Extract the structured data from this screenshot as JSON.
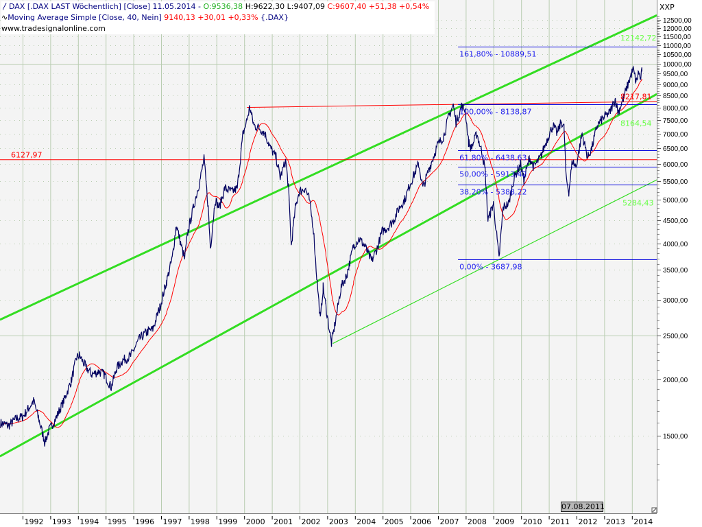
{
  "legend": {
    "line1": {
      "symbol": "DAX [.DAX LAST Wöchentlich] [Close] 11.05.2014 -",
      "open": "O:9536,38",
      "hl": "H:9622,30 L:9407,09",
      "close": "C:9607,40 +51,38 +0,54%"
    },
    "line2": {
      "name": "Moving Average Simple [Close, 40, Nein]",
      "value": "9140,13 +30,01 +0,33%",
      "suffix": "{.DAX}"
    },
    "url": "www.tradesignalonline.com"
  },
  "axis_unit": "XXP",
  "cursor_label": "07.08.2011",
  "colors": {
    "price": "#000060",
    "ma": "#ff0000",
    "trend": "#33dd22",
    "fib": "#0000dd",
    "grid": "#b8ccb0",
    "plot_bg": "#f4f4f4"
  },
  "chart_data": {
    "type": "line",
    "yscale": "log",
    "ylim": [
      1150,
      13200
    ],
    "xlim": [
      1991.18,
      2014.9
    ],
    "grid": true,
    "x_ticks": [
      "1992",
      "1993",
      "1994",
      "1995",
      "1996",
      "1997",
      "1998",
      "1999",
      "2000",
      "2001",
      "2002",
      "2003",
      "2004",
      "2005",
      "2006",
      "2007",
      "2008",
      "2009",
      "2010",
      "2011",
      "2012",
      "2013",
      "2014"
    ],
    "y_ticks": [
      "12500,00",
      "12000,00",
      "11500,00",
      "11000,00",
      "10500,00",
      "10000,00",
      "9500,00",
      "9000,00",
      "8500,00",
      "8000,00",
      "7500,00",
      "7000,00",
      "6500,00",
      "6000,00",
      "5500,00",
      "5000,00",
      "4500,00",
      "4000,00",
      "3500,00",
      "3000,00",
      "2500,00",
      "2000,00",
      "1500,00"
    ],
    "y_tick_values": [
      12500,
      12000,
      11500,
      11000,
      10500,
      10000,
      9500,
      9000,
      8500,
      8000,
      7500,
      7000,
      6500,
      6000,
      5500,
      5000,
      4500,
      4000,
      3500,
      3000,
      2500,
      2000,
      1500
    ],
    "series": [
      {
        "name": "DAX",
        "points": [
          [
            1991.2,
            1600
          ],
          [
            1991.5,
            1580
          ],
          [
            1991.8,
            1640
          ],
          [
            1992.0,
            1650
          ],
          [
            1992.2,
            1720
          ],
          [
            1992.4,
            1790
          ],
          [
            1992.6,
            1620
          ],
          [
            1992.8,
            1450
          ],
          [
            1992.95,
            1540
          ],
          [
            1993.2,
            1640
          ],
          [
            1993.5,
            1800
          ],
          [
            1993.75,
            1980
          ],
          [
            1993.95,
            2230
          ],
          [
            1994.05,
            2260
          ],
          [
            1994.3,
            2120
          ],
          [
            1994.5,
            2050
          ],
          [
            1994.75,
            2080
          ],
          [
            1994.95,
            2050
          ],
          [
            1995.2,
            1920
          ],
          [
            1995.4,
            2120
          ],
          [
            1995.6,
            2200
          ],
          [
            1995.9,
            2250
          ],
          [
            1996.2,
            2450
          ],
          [
            1996.5,
            2550
          ],
          [
            1996.7,
            2580
          ],
          [
            1996.95,
            2880
          ],
          [
            1997.2,
            3300
          ],
          [
            1997.4,
            3700
          ],
          [
            1997.55,
            4400
          ],
          [
            1997.75,
            3900
          ],
          [
            1997.85,
            3700
          ],
          [
            1997.97,
            4250
          ],
          [
            1998.2,
            4900
          ],
          [
            1998.4,
            5500
          ],
          [
            1998.55,
            6150
          ],
          [
            1998.7,
            4800
          ],
          [
            1998.78,
            3900
          ],
          [
            1998.95,
            5000
          ],
          [
            1999.1,
            4800
          ],
          [
            1999.3,
            5300
          ],
          [
            1999.55,
            5200
          ],
          [
            1999.75,
            5300
          ],
          [
            1999.95,
            6950
          ],
          [
            2000.1,
            7500
          ],
          [
            2000.2,
            8000
          ],
          [
            2000.35,
            7300
          ],
          [
            2000.55,
            7200
          ],
          [
            2000.75,
            7000
          ],
          [
            2000.95,
            6500
          ],
          [
            2001.15,
            6200
          ],
          [
            2001.3,
            5600
          ],
          [
            2001.5,
            6100
          ],
          [
            2001.6,
            5300
          ],
          [
            2001.7,
            3950
          ],
          [
            2001.85,
            4800
          ],
          [
            2001.98,
            5200
          ],
          [
            2002.2,
            5300
          ],
          [
            2002.35,
            5000
          ],
          [
            2002.5,
            4300
          ],
          [
            2002.6,
            3500
          ],
          [
            2002.75,
            2700
          ],
          [
            2002.85,
            3200
          ],
          [
            2002.95,
            2900
          ],
          [
            2003.15,
            2400
          ],
          [
            2003.3,
            2700
          ],
          [
            2003.5,
            3200
          ],
          [
            2003.7,
            3400
          ],
          [
            2003.95,
            3950
          ],
          [
            2004.15,
            4100
          ],
          [
            2004.35,
            3950
          ],
          [
            2004.6,
            3650
          ],
          [
            2004.8,
            3900
          ],
          [
            2004.98,
            4250
          ],
          [
            2005.2,
            4350
          ],
          [
            2005.4,
            4500
          ],
          [
            2005.6,
            4800
          ],
          [
            2005.8,
            5000
          ],
          [
            2005.98,
            5400
          ],
          [
            2006.3,
            6000
          ],
          [
            2006.45,
            5300
          ],
          [
            2006.7,
            5900
          ],
          [
            2006.98,
            6600
          ],
          [
            2007.2,
            6900
          ],
          [
            2007.4,
            7700
          ],
          [
            2007.55,
            8100
          ],
          [
            2007.65,
            7400
          ],
          [
            2007.85,
            8050
          ],
          [
            2007.98,
            7900
          ],
          [
            2008.1,
            6700
          ],
          [
            2008.2,
            6500
          ],
          [
            2008.4,
            7000
          ],
          [
            2008.6,
            6300
          ],
          [
            2008.7,
            5800
          ],
          [
            2008.8,
            4500
          ],
          [
            2008.9,
            4700
          ],
          [
            2009.0,
            4900
          ],
          [
            2009.2,
            3700
          ],
          [
            2009.35,
            4800
          ],
          [
            2009.55,
            4900
          ],
          [
            2009.75,
            5600
          ],
          [
            2009.98,
            6000
          ],
          [
            2010.1,
            5500
          ],
          [
            2010.3,
            6200
          ],
          [
            2010.45,
            5900
          ],
          [
            2010.7,
            6200
          ],
          [
            2010.98,
            6900
          ],
          [
            2011.15,
            7300
          ],
          [
            2011.3,
            7000
          ],
          [
            2011.45,
            7450
          ],
          [
            2011.55,
            7200
          ],
          [
            2011.62,
            5600
          ],
          [
            2011.72,
            5200
          ],
          [
            2011.85,
            6100
          ],
          [
            2011.98,
            5900
          ],
          [
            2012.2,
            7000
          ],
          [
            2012.4,
            6200
          ],
          [
            2012.55,
            6500
          ],
          [
            2012.75,
            7300
          ],
          [
            2012.98,
            7600
          ],
          [
            2013.2,
            7800
          ],
          [
            2013.4,
            8350
          ],
          [
            2013.5,
            7800
          ],
          [
            2013.7,
            8400
          ],
          [
            2013.98,
            9500
          ],
          [
            2014.05,
            9700
          ],
          [
            2014.15,
            9100
          ],
          [
            2014.25,
            9600
          ],
          [
            2014.3,
            9200
          ],
          [
            2014.36,
            9607
          ]
        ]
      },
      {
        "name": "Moving Average Simple [Close, 40, Nein]",
        "period_weeks": 40
      }
    ],
    "lines": [
      {
        "kind": "trend",
        "from": [
          1991.18,
          2709
        ],
        "to": [
          2014.9,
          12800
        ],
        "label": "12142,72",
        "width": "thick"
      },
      {
        "kind": "trend",
        "from": [
          1991.18,
          1350
        ],
        "to": [
          2014.9,
          8564
        ],
        "label": "8164,54",
        "width": "thick"
      },
      {
        "kind": "trend",
        "from": [
          2003.2,
          2400
        ],
        "to": [
          2014.9,
          5531
        ],
        "label": "5284,43",
        "width": "thin"
      },
      {
        "kind": "resistance",
        "from": [
          2000.1,
          8000
        ],
        "to": [
          2014.9,
          8245
        ],
        "label": "8217,81"
      },
      {
        "kind": "horizontal",
        "value": 6127.97,
        "label": "6127,97"
      }
    ],
    "fibonacci": {
      "start": 2007.72,
      "levels": [
        {
          "label": "161,80% - 10889,51",
          "value": 10889.51
        },
        {
          "label": "100,00% - 8138,87",
          "value": 8138.87
        },
        {
          "label": "61,80% - 6438,63",
          "value": 6438.63
        },
        {
          "label": "50,00% - 5913,42",
          "value": 5913.42
        },
        {
          "label": "38,20% - 5388,22",
          "value": 5388.22
        },
        {
          "label": "0,00% - 3687,98",
          "value": 3687.98
        }
      ]
    }
  }
}
